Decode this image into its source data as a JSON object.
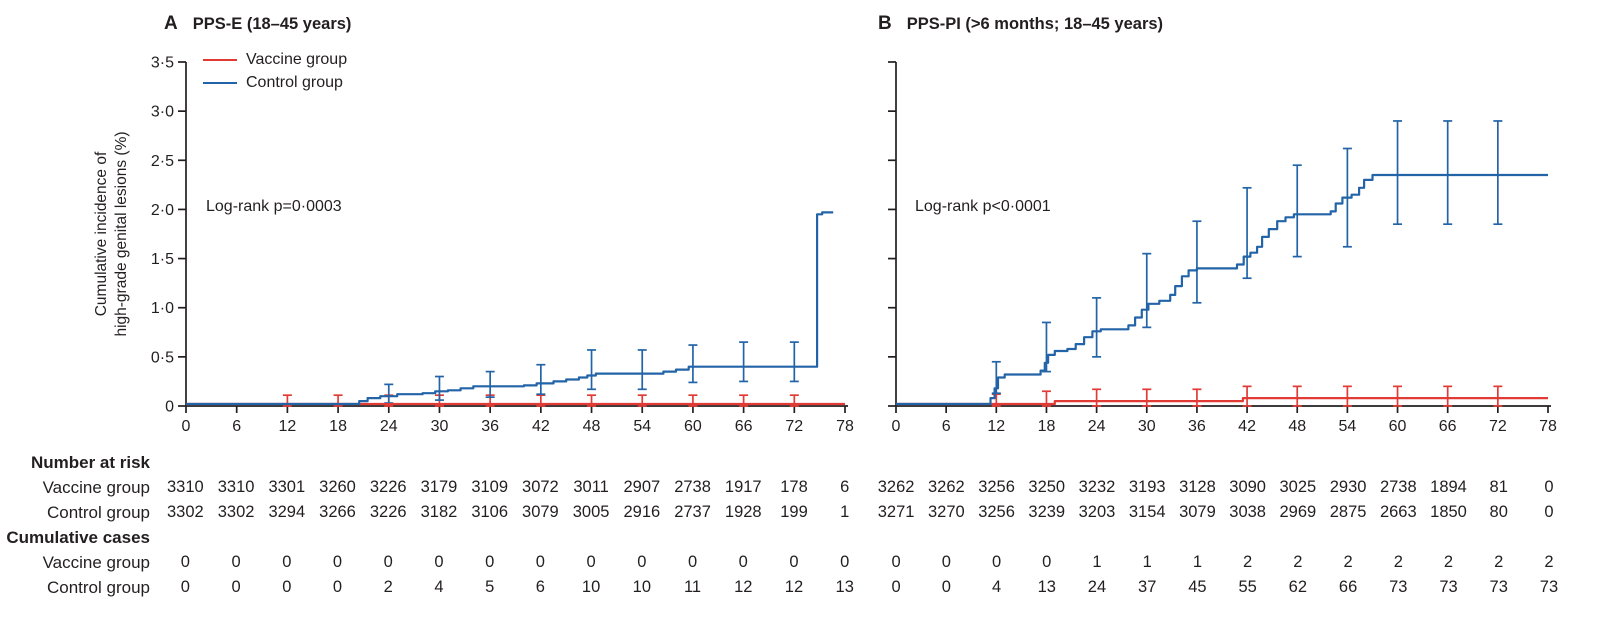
{
  "colors": {
    "vaccine": "#e23b36",
    "control": "#2264a7",
    "axis": "#231f20",
    "text": "#231f20"
  },
  "ylabel": {
    "line1": "Cumulative incidence of",
    "line2": "high-grade genital lesions (%)"
  },
  "legend": {
    "items": [
      {
        "label": "Vaccine group",
        "color": "vaccine"
      },
      {
        "label": "Control group",
        "color": "control"
      }
    ]
  },
  "table": {
    "headers": {
      "at_risk": "Number at risk",
      "cumulative": "Cumulative cases"
    },
    "row_labels": {
      "vaccine": "Vaccine group",
      "control": "Control group"
    }
  },
  "chart_data": [
    {
      "type": "line",
      "panel": "A",
      "title": "PPS-E (18–45 years)",
      "annotation": "Log-rank p=0·0003",
      "xlabel": "",
      "ylabel": "Cumulative incidence of high-grade genital lesions (%)",
      "xlim": [
        0,
        78
      ],
      "ylim": [
        0,
        3.5
      ],
      "xticks": [
        0,
        6,
        12,
        18,
        24,
        30,
        36,
        42,
        48,
        54,
        60,
        66,
        72,
        78
      ],
      "yticks": [
        "0",
        "0·5",
        "1·0",
        "1·5",
        "2·0",
        "2·5",
        "3·0",
        "3·5"
      ],
      "show_y_tick_labels": true,
      "series": [
        {
          "name": "Vaccine group",
          "color": "vaccine",
          "step_points": [
            [
              0,
              0.02
            ],
            [
              78,
              0.02
            ]
          ],
          "error_bars": [
            [
              12,
              0,
              0.11
            ],
            [
              18,
              0,
              0.11
            ],
            [
              24,
              0,
              0.11
            ],
            [
              30,
              0,
              0.11
            ],
            [
              36,
              0,
              0.11
            ],
            [
              42,
              0,
              0.11
            ],
            [
              48,
              0,
              0.11
            ],
            [
              54,
              0,
              0.11
            ],
            [
              60,
              0,
              0.11
            ],
            [
              66,
              0,
              0.11
            ],
            [
              72,
              0,
              0.11
            ]
          ]
        },
        {
          "name": "Control group",
          "color": "control",
          "step_points": [
            [
              0,
              0.02
            ],
            [
              20.5,
              0.05
            ],
            [
              21.5,
              0.08
            ],
            [
              23,
              0.1
            ],
            [
              25,
              0.12
            ],
            [
              28,
              0.13
            ],
            [
              29.5,
              0.15
            ],
            [
              31,
              0.16
            ],
            [
              32.5,
              0.18
            ],
            [
              34,
              0.2
            ],
            [
              40,
              0.21
            ],
            [
              41.5,
              0.23
            ],
            [
              43.5,
              0.25
            ],
            [
              45,
              0.27
            ],
            [
              46.5,
              0.29
            ],
            [
              47.5,
              0.31
            ],
            [
              48.5,
              0.33
            ],
            [
              56.5,
              0.35
            ],
            [
              58,
              0.37
            ],
            [
              59.5,
              0.4
            ],
            [
              74.7,
              1.95
            ],
            [
              75.3,
              1.97
            ],
            [
              76.6,
              1.97
            ]
          ],
          "error_bars": [
            [
              24,
              0.03,
              0.22
            ],
            [
              30,
              0.06,
              0.3
            ],
            [
              36,
              0.09,
              0.35
            ],
            [
              42,
              0.12,
              0.42
            ],
            [
              48,
              0.17,
              0.57
            ],
            [
              54,
              0.17,
              0.57
            ],
            [
              60,
              0.24,
              0.62
            ],
            [
              66,
              0.25,
              0.65
            ],
            [
              72,
              0.25,
              0.65
            ]
          ]
        }
      ],
      "number_at_risk": {
        "vaccine": [
          3310,
          3310,
          3301,
          3260,
          3226,
          3179,
          3109,
          3072,
          3011,
          2907,
          2738,
          1917,
          178,
          6
        ],
        "control": [
          3302,
          3302,
          3294,
          3266,
          3226,
          3182,
          3106,
          3079,
          3005,
          2916,
          2737,
          1928,
          199,
          1
        ]
      },
      "cumulative_cases": {
        "vaccine": [
          0,
          0,
          0,
          0,
          0,
          0,
          0,
          0,
          0,
          0,
          0,
          0,
          0,
          0
        ],
        "control": [
          0,
          0,
          0,
          0,
          2,
          4,
          5,
          6,
          10,
          10,
          11,
          12,
          12,
          13
        ]
      }
    },
    {
      "type": "line",
      "panel": "B",
      "title": "PPS-PI (>6 months; 18–45 years)",
      "annotation": "Log-rank p<0·0001",
      "xlabel": "",
      "ylabel": "",
      "xlim": [
        0,
        78
      ],
      "ylim": [
        0,
        3.5
      ],
      "xticks": [
        0,
        6,
        12,
        18,
        24,
        30,
        36,
        42,
        48,
        54,
        60,
        66,
        72,
        78
      ],
      "yticks": [
        "0",
        "0·5",
        "1·0",
        "1·5",
        "2·0",
        "2·5",
        "3·0",
        "3·5"
      ],
      "show_y_tick_labels": false,
      "series": [
        {
          "name": "Vaccine group",
          "color": "vaccine",
          "step_points": [
            [
              0,
              0.02
            ],
            [
              19,
              0.05
            ],
            [
              41.5,
              0.08
            ],
            [
              78,
              0.08
            ]
          ],
          "error_bars": [
            [
              12,
              0,
              0.12
            ],
            [
              18,
              0,
              0.15
            ],
            [
              24,
              0,
              0.17
            ],
            [
              30,
              0,
              0.17
            ],
            [
              36,
              0,
              0.17
            ],
            [
              42,
              0,
              0.2
            ],
            [
              48,
              0,
              0.2
            ],
            [
              54,
              0,
              0.2
            ],
            [
              60,
              0,
              0.2
            ],
            [
              66,
              0,
              0.2
            ],
            [
              72,
              0,
              0.2
            ]
          ]
        },
        {
          "name": "Control group",
          "color": "control",
          "step_points": [
            [
              0,
              0.02
            ],
            [
              11.3,
              0.08
            ],
            [
              11.8,
              0.18
            ],
            [
              12.2,
              0.29
            ],
            [
              13,
              0.32
            ],
            [
              17.3,
              0.36
            ],
            [
              17.8,
              0.44
            ],
            [
              18.2,
              0.52
            ],
            [
              19,
              0.56
            ],
            [
              20.5,
              0.58
            ],
            [
              21.5,
              0.63
            ],
            [
              22.5,
              0.7
            ],
            [
              23.5,
              0.76
            ],
            [
              24.5,
              0.78
            ],
            [
              27.8,
              0.82
            ],
            [
              28.6,
              0.9
            ],
            [
              29.4,
              0.98
            ],
            [
              30.2,
              1.04
            ],
            [
              31.5,
              1.07
            ],
            [
              32.8,
              1.13
            ],
            [
              33.4,
              1.22
            ],
            [
              34.2,
              1.32
            ],
            [
              35,
              1.38
            ],
            [
              36,
              1.4
            ],
            [
              40.8,
              1.44
            ],
            [
              41.6,
              1.52
            ],
            [
              42.4,
              1.56
            ],
            [
              43.2,
              1.62
            ],
            [
              43.8,
              1.72
            ],
            [
              44.6,
              1.8
            ],
            [
              45.6,
              1.88
            ],
            [
              46.6,
              1.92
            ],
            [
              47.6,
              1.95
            ],
            [
              52,
              1.98
            ],
            [
              52.6,
              2.06
            ],
            [
              53.4,
              2.12
            ],
            [
              54.5,
              2.15
            ],
            [
              55.4,
              2.22
            ],
            [
              56,
              2.3
            ],
            [
              57,
              2.35
            ],
            [
              78,
              2.35
            ]
          ],
          "error_bars": [
            [
              12,
              0.13,
              0.45
            ],
            [
              18,
              0.35,
              0.85
            ],
            [
              24,
              0.5,
              1.1
            ],
            [
              30,
              0.8,
              1.55
            ],
            [
              36,
              1.05,
              1.88
            ],
            [
              42,
              1.3,
              2.22
            ],
            [
              48,
              1.52,
              2.45
            ],
            [
              54,
              1.62,
              2.62
            ],
            [
              60,
              1.85,
              2.9
            ],
            [
              66,
              1.85,
              2.9
            ],
            [
              72,
              1.85,
              2.9
            ]
          ]
        }
      ],
      "number_at_risk": {
        "vaccine": [
          3262,
          3262,
          3256,
          3250,
          3232,
          3193,
          3128,
          3090,
          3025,
          2930,
          2738,
          1894,
          81,
          0
        ],
        "control": [
          3271,
          3270,
          3256,
          3239,
          3203,
          3154,
          3079,
          3038,
          2969,
          2875,
          2663,
          1850,
          80,
          0
        ]
      },
      "cumulative_cases": {
        "vaccine": [
          0,
          0,
          0,
          0,
          1,
          1,
          1,
          2,
          2,
          2,
          2,
          2,
          2,
          2
        ],
        "control": [
          0,
          0,
          4,
          13,
          24,
          37,
          45,
          55,
          62,
          66,
          73,
          73,
          73,
          73
        ]
      }
    }
  ]
}
